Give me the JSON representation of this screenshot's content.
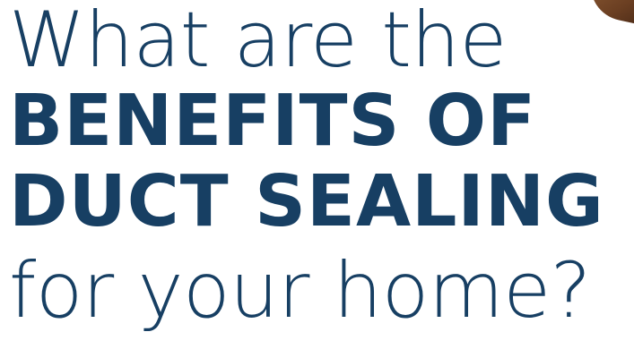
{
  "headline": {
    "line1": "What are the",
    "line2": "BENEFITS OF",
    "line3": "DUCT SEALING",
    "line4": "for your home?"
  },
  "colors": {
    "text": "#173f63",
    "background": "#ffffff",
    "accent": "#6b3f22"
  },
  "icons": {
    "corner": "corner-decoration"
  }
}
